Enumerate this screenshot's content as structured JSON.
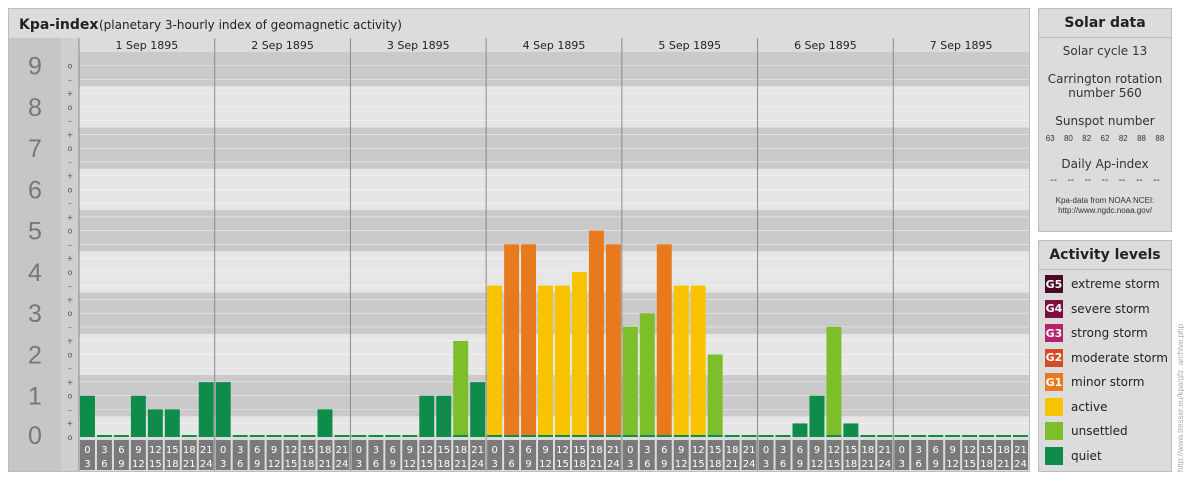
{
  "header": {
    "title": "Kpa-index",
    "subtitle": "(planetary 3-hourly index of geomagnetic activity)"
  },
  "chart_data": {
    "type": "bar",
    "days": [
      "1 Sep 1895",
      "2 Sep 1895",
      "3 Sep 1895",
      "4 Sep 1895",
      "5 Sep 1895",
      "6 Sep 1895",
      "7 Sep 1895"
    ],
    "y_labels": [
      "0",
      "1",
      "2",
      "3",
      "4",
      "5",
      "6",
      "7",
      "8",
      "9"
    ],
    "y_sublabels": [
      "–",
      "o",
      "+"
    ],
    "ylim": [
      0,
      9.33
    ],
    "interval_start_labels": [
      "0",
      "3",
      "6",
      "9",
      "12",
      "15",
      "18",
      "21"
    ],
    "interval_end_labels": [
      "3",
      "6",
      "9",
      "12",
      "15",
      "18",
      "21",
      "24"
    ],
    "values": [
      [
        1.0,
        0.0,
        0.0,
        1.0,
        0.67,
        0.67,
        0.0,
        1.33
      ],
      [
        1.33,
        0.0,
        0.0,
        0.0,
        0.0,
        0.0,
        0.67,
        0.0
      ],
      [
        0.0,
        0.0,
        0.0,
        0.0,
        1.0,
        1.0,
        2.33,
        1.33
      ],
      [
        3.67,
        4.67,
        4.67,
        3.67,
        3.67,
        4.0,
        5.0,
        4.67
      ],
      [
        2.67,
        3.0,
        4.67,
        3.67,
        3.67,
        2.0,
        0.0,
        0.0
      ],
      [
        0.0,
        0.0,
        0.33,
        1.0,
        2.67,
        0.33,
        0.0,
        0.0
      ],
      [
        0.0,
        0.0,
        0.0,
        0.0,
        0.0,
        0.0,
        0.0,
        0.0
      ]
    ],
    "bar_colors": {
      "quiet": "#0f8c4a",
      "unsettled": "#7cbf2b",
      "active": "#f8c300",
      "G1": "#e87a1d",
      "G2": "#d64b25",
      "G3": "#b3216f",
      "G4": "#7b1040",
      "G5": "#4b0a25"
    }
  },
  "solar": {
    "title": "Solar data",
    "cycle": "Solar cycle 13",
    "carrington_line1": "Carrington rotation",
    "carrington_line2": "number 560",
    "sunspot_label": "Sunspot number",
    "sunspot_values": [
      "63",
      "80",
      "82",
      "62",
      "82",
      "88",
      "88"
    ],
    "ap_label": "Daily Ap-index",
    "ap_values": [
      "--",
      "--",
      "--",
      "--",
      "--",
      "--",
      "--"
    ],
    "source_line1": "Kpa-data from NOAA NCEI:",
    "source_line2": "http://www.ngdc.noaa.gov/"
  },
  "activity": {
    "title": "Activity levels",
    "items": [
      {
        "badge": "G5",
        "label": "extreme storm",
        "color": "#4b0a25"
      },
      {
        "badge": "G4",
        "label": "severe storm",
        "color": "#7b1040"
      },
      {
        "badge": "G3",
        "label": "strong storm",
        "color": "#b3216f"
      },
      {
        "badge": "G2",
        "label": "moderate storm",
        "color": "#d64b25"
      },
      {
        "badge": "G1",
        "label": "minor storm",
        "color": "#e87a1d"
      },
      {
        "badge": "",
        "label": "active",
        "color": "#f8c300"
      },
      {
        "badge": "",
        "label": "unsettled",
        "color": "#7cbf2b"
      },
      {
        "badge": "",
        "label": "quiet",
        "color": "#0f8c4a"
      }
    ]
  },
  "watermark": "http://www.tresser.eu/kpa/gfz_archive.php"
}
